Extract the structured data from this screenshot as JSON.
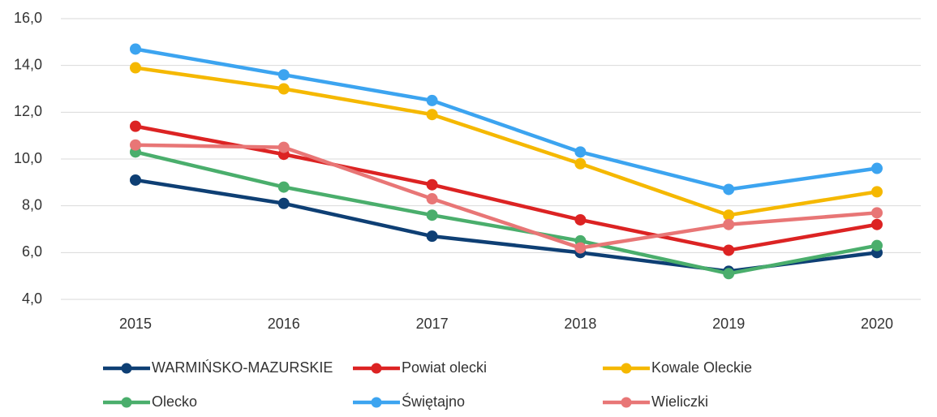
{
  "chart_data": {
    "type": "line",
    "categories": [
      "2015",
      "2016",
      "2017",
      "2018",
      "2019",
      "2020"
    ],
    "series": [
      {
        "name": "WARMIŃSKO-MAZURSKIE",
        "color": "#0e3f74",
        "values": [
          9.1,
          8.1,
          6.7,
          6.0,
          5.2,
          6.0
        ]
      },
      {
        "name": "Powiat olecki",
        "color": "#dc2323",
        "values": [
          11.4,
          10.2,
          8.9,
          7.4,
          6.1,
          7.2
        ]
      },
      {
        "name": "Kowale Oleckie",
        "color": "#f5b800",
        "values": [
          13.9,
          13.0,
          11.9,
          9.8,
          7.6,
          8.6
        ]
      },
      {
        "name": "Olecko",
        "color": "#4aae6c",
        "values": [
          10.3,
          8.8,
          7.6,
          6.5,
          5.1,
          6.3
        ]
      },
      {
        "name": "Świętajno",
        "color": "#3ca4f0",
        "values": [
          14.7,
          13.6,
          12.5,
          10.3,
          8.7,
          9.6
        ]
      },
      {
        "name": "Wieliczki",
        "color": "#e87676",
        "values": [
          10.6,
          10.5,
          8.3,
          6.2,
          7.2,
          7.7
        ]
      }
    ],
    "ylim": [
      4,
      16
    ],
    "yticks": [
      {
        "value": 4,
        "label": "4,0"
      },
      {
        "value": 6,
        "label": "6,0"
      },
      {
        "value": 8,
        "label": "8,0"
      },
      {
        "value": 10,
        "label": "10,0"
      },
      {
        "value": 12,
        "label": "12,0"
      },
      {
        "value": 14,
        "label": "14,0"
      },
      {
        "value": 16,
        "label": "16,0"
      }
    ],
    "grid": true
  }
}
